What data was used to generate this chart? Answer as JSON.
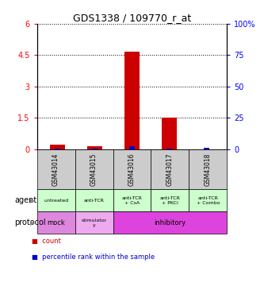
{
  "title": "GDS1338 / 109770_r_at",
  "samples": [
    "GSM43014",
    "GSM43015",
    "GSM43016",
    "GSM43017",
    "GSM43018"
  ],
  "count_values": [
    0.2,
    0.12,
    4.65,
    1.52,
    0.0
  ],
  "percentile_values": [
    0.03,
    0.03,
    0.15,
    0.03,
    0.07
  ],
  "ylim_left": [
    0,
    6
  ],
  "ylim_right": [
    0,
    100
  ],
  "yticks_left": [
    0,
    1.5,
    3.0,
    4.5,
    6.0
  ],
  "ytick_labels_left": [
    "0",
    "1.5",
    "3",
    "4.5",
    "6"
  ],
  "yticks_right": [
    0,
    25,
    50,
    75,
    100
  ],
  "ytick_labels_right": [
    "0",
    "25",
    "50",
    "75",
    "100%"
  ],
  "agent_labels": [
    "untreated",
    "anti-TCR",
    "anti-TCR\n+ CsA",
    "anti-TCR\n+ PKCi",
    "anti-TCR\n+ Combo"
  ],
  "agent_bg_color": "#ccffcc",
  "protocol_mock_color": "#dd88dd",
  "protocol_stim_color": "#eeaaee",
  "protocol_inhib_color": "#dd44dd",
  "sample_header_bg": "#cccccc",
  "bar_color_count": "#cc0000",
  "bar_color_pct": "#0000cc",
  "bar_width": 0.4,
  "grid_color": "black",
  "grid_linestyle": ":"
}
